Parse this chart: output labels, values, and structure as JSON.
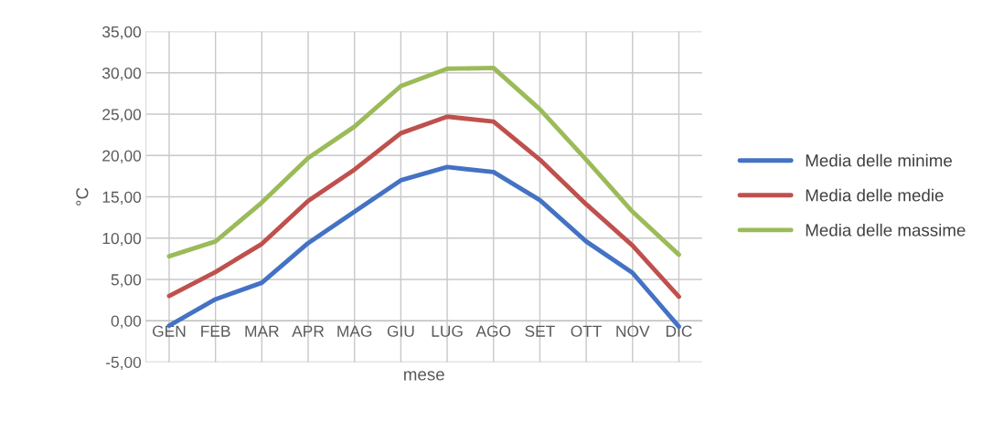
{
  "chart_data": {
    "type": "line",
    "xlabel": "mese",
    "ylabel": "°C",
    "categories": [
      "GEN",
      "FEB",
      "MAR",
      "APR",
      "MAG",
      "GIU",
      "LUG",
      "AGO",
      "SET",
      "OTT",
      "NOV",
      "DIC"
    ],
    "series": [
      {
        "name": "Media delle minime",
        "color": "#4472c4",
        "values": [
          -0.6,
          2.6,
          4.6,
          9.4,
          13.2,
          17.0,
          18.6,
          18.0,
          14.6,
          9.6,
          5.8,
          -0.7
        ]
      },
      {
        "name": "Media delle medie",
        "color": "#c0504d",
        "values": [
          3.0,
          5.9,
          9.3,
          14.5,
          18.3,
          22.7,
          24.7,
          24.1,
          19.5,
          14.1,
          9.1,
          2.9
        ]
      },
      {
        "name": "Media delle massime",
        "color": "#9bbb59",
        "values": [
          7.8,
          9.6,
          14.3,
          19.7,
          23.5,
          28.4,
          30.5,
          30.6,
          25.6,
          19.5,
          13.2,
          8.0
        ]
      }
    ],
    "ylim": [
      -5,
      35
    ],
    "yticks": [
      {
        "value": -5,
        "label": "-5,00"
      },
      {
        "value": 0,
        "label": "0,00"
      },
      {
        "value": 5,
        "label": "5,00"
      },
      {
        "value": 10,
        "label": "10,00"
      },
      {
        "value": 15,
        "label": "15,00"
      },
      {
        "value": 20,
        "label": "20,00"
      },
      {
        "value": 25,
        "label": "25,00"
      },
      {
        "value": 30,
        "label": "30,00"
      },
      {
        "value": 35,
        "label": "35,00"
      }
    ],
    "grid": true,
    "legend": "right",
    "marker": "none",
    "line_style": "solid"
  }
}
